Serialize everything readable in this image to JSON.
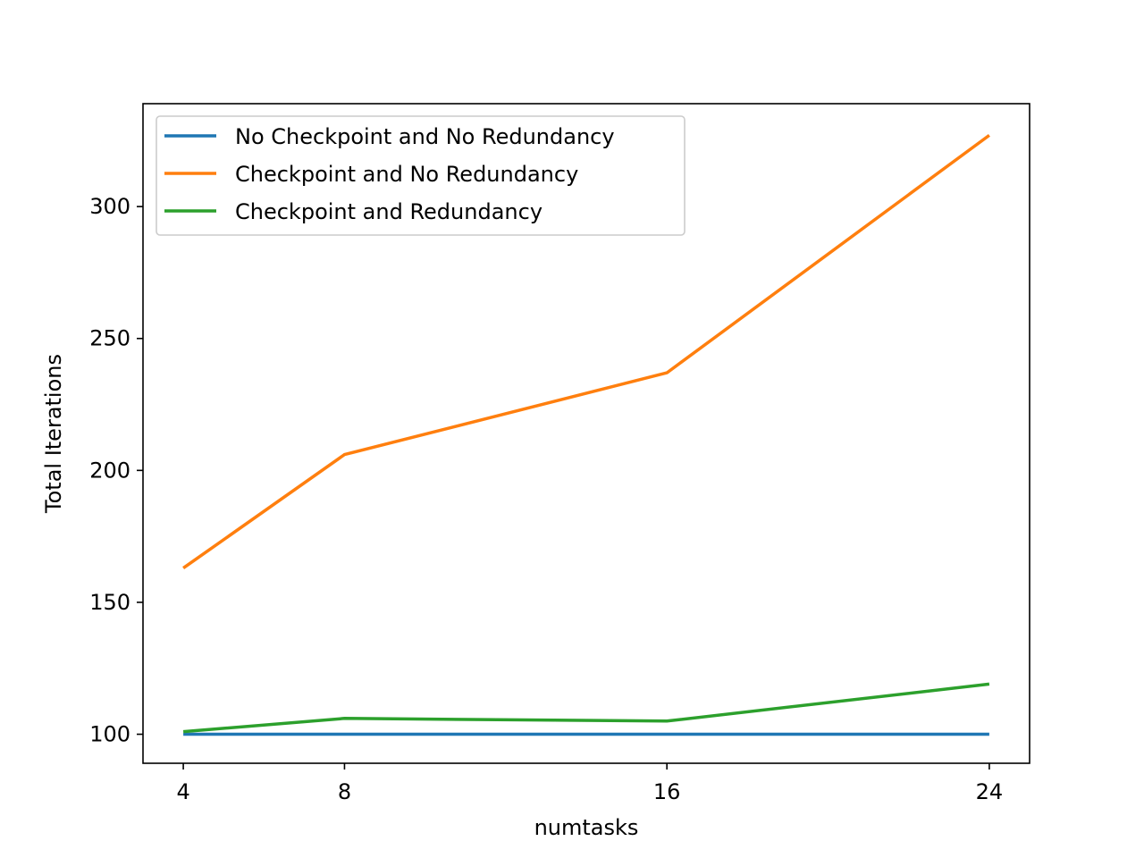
{
  "chart_data": {
    "type": "line",
    "title": "",
    "xlabel": "numtasks",
    "ylabel": "Total Iterations",
    "x": [
      4,
      8,
      16,
      24
    ],
    "x_ticks": [
      4,
      8,
      16,
      24
    ],
    "y_ticks": [
      100,
      150,
      200,
      250,
      300
    ],
    "xlim": [
      3,
      25
    ],
    "ylim": [
      89,
      339
    ],
    "grid": false,
    "legend_position": "upper-left",
    "series": [
      {
        "name": "No Checkpoint and No Redundancy",
        "color": "#1f77b4",
        "values": [
          100,
          100,
          100,
          100
        ]
      },
      {
        "name": "Checkpoint and No Redundancy",
        "color": "#ff7f0e",
        "values": [
          163,
          206,
          237,
          327
        ]
      },
      {
        "name": "Checkpoint and Redundancy",
        "color": "#2ca02c",
        "values": [
          101,
          106,
          105,
          119
        ]
      }
    ]
  }
}
